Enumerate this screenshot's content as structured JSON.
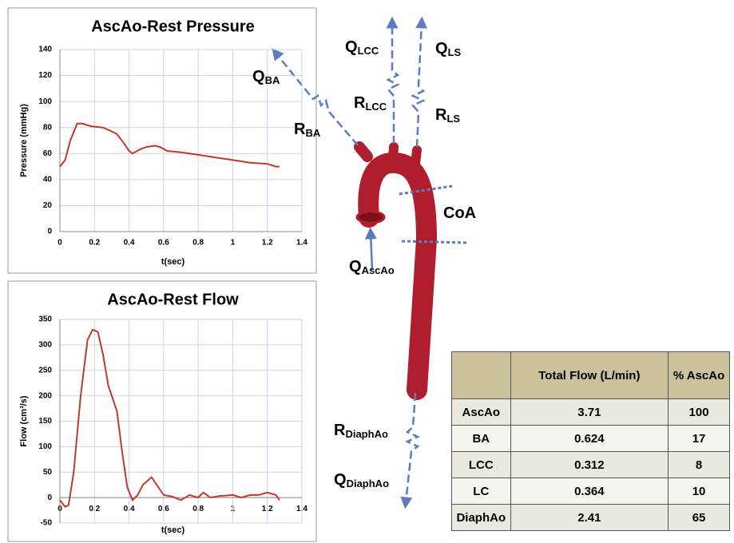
{
  "chart_data": [
    {
      "type": "line",
      "title": "AscAo-Rest Pressure",
      "xlabel": "t(sec)",
      "ylabel": "Pressure (mmHg)",
      "x": [
        0,
        0.03,
        0.06,
        0.1,
        0.13,
        0.18,
        0.25,
        0.3,
        0.33,
        0.37,
        0.4,
        0.42,
        0.46,
        0.5,
        0.55,
        0.58,
        0.62,
        0.7,
        0.8,
        0.9,
        1.0,
        1.1,
        1.2,
        1.25,
        1.27
      ],
      "values": [
        50,
        55,
        70,
        83,
        83,
        81,
        80,
        77,
        75,
        68,
        62,
        60,
        63,
        65,
        66,
        65,
        62,
        61,
        59,
        57,
        55,
        53,
        52,
        50,
        50
      ],
      "color": "#c0392b",
      "xlim": [
        0,
        1.4
      ],
      "xticks": [
        0,
        0.2,
        0.4,
        0.6,
        0.8,
        1,
        1.2,
        1.4
      ],
      "ylim": [
        0,
        140
      ],
      "yticks": [
        0,
        20,
        40,
        60,
        80,
        100,
        120,
        140
      ],
      "grid": true
    },
    {
      "type": "line",
      "title": "AscAo-Rest Flow",
      "xlabel": "t(sec)",
      "ylabel": "Flow (cm³/s)",
      "x": [
        0,
        0.03,
        0.05,
        0.08,
        0.12,
        0.16,
        0.19,
        0.22,
        0.25,
        0.28,
        0.33,
        0.36,
        0.39,
        0.42,
        0.45,
        0.48,
        0.53,
        0.56,
        0.6,
        0.65,
        0.7,
        0.75,
        0.8,
        0.83,
        0.87,
        0.92,
        1.0,
        1.05,
        1.1,
        1.15,
        1.2,
        1.25,
        1.27
      ],
      "values": [
        -5,
        -18,
        -15,
        50,
        200,
        310,
        330,
        325,
        280,
        220,
        170,
        90,
        20,
        -5,
        5,
        25,
        40,
        25,
        5,
        2,
        -5,
        5,
        0,
        10,
        0,
        3,
        5,
        0,
        5,
        5,
        10,
        5,
        -5
      ],
      "color": "#c0392b",
      "xlim": [
        0,
        1.4
      ],
      "xticks": [
        0,
        0.2,
        0.4,
        0.6,
        0.8,
        1,
        1.2,
        1.4
      ],
      "ylim": [
        -50,
        350
      ],
      "yticks": [
        -50,
        0,
        50,
        100,
        150,
        200,
        250,
        300,
        350
      ],
      "grid": true
    }
  ],
  "diagram": {
    "labels": [
      {
        "text": "Q",
        "sub": "BA"
      },
      {
        "text": "R",
        "sub": "BA"
      },
      {
        "text": "Q",
        "sub": "LCC"
      },
      {
        "text": "R",
        "sub": "LCC"
      },
      {
        "text": "Q",
        "sub": "LS"
      },
      {
        "text": "R",
        "sub": "LS"
      },
      {
        "text": "CoA"
      },
      {
        "text": "Q",
        "sub": "AscAo"
      },
      {
        "text": "R",
        "sub": "DiaphAo"
      },
      {
        "text": "Q",
        "sub": "DiaphAo"
      }
    ]
  },
  "table": {
    "header": [
      "Total Flow (L/min)",
      "% AscAo"
    ],
    "rows": [
      [
        "AscAo",
        "3.71",
        "100"
      ],
      [
        "BA",
        "0.624",
        "17"
      ],
      [
        "LCC",
        "0.312",
        "8"
      ],
      [
        "LC",
        "0.364",
        "10"
      ],
      [
        "DiaphAo",
        "2.41",
        "65"
      ]
    ]
  }
}
